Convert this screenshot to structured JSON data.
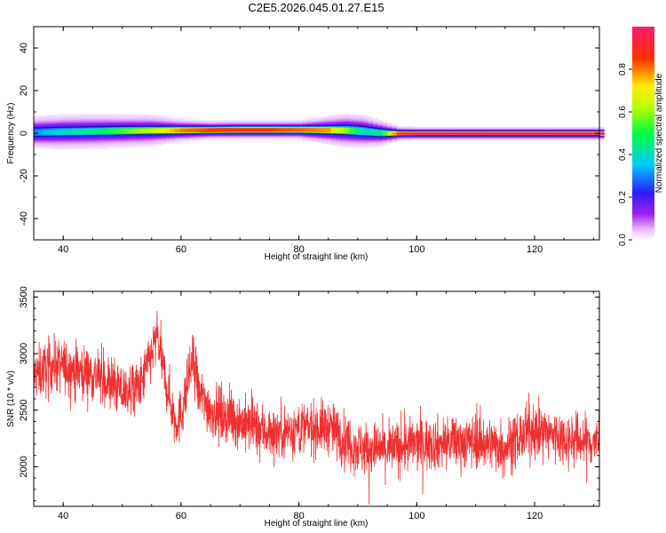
{
  "figure_title": "C2E5.2026.045.01.27.E15",
  "chart_data": [
    {
      "type": "heatmap",
      "xlabel": "Height of straight line (km)",
      "ylabel": "Frequency (Hz)",
      "xlim": [
        35,
        131
      ],
      "ylim": [
        -50,
        50
      ],
      "xticks": [
        40,
        60,
        80,
        100,
        120
      ],
      "yticks": [
        -40,
        -20,
        0,
        20,
        40
      ],
      "colorbar": {
        "label": "Normalized spectral amplitude",
        "range": [
          0,
          1
        ],
        "ticks": [
          0.0,
          0.2,
          0.4,
          0.6,
          0.8
        ]
      },
      "ridge": {
        "height_km": [
          35,
          40,
          45,
          50,
          55,
          60,
          65,
          70,
          75,
          80,
          85,
          88,
          91,
          94,
          97,
          100,
          105,
          110,
          115,
          120,
          125,
          131
        ],
        "center_hz": [
          0.5,
          0.8,
          1.0,
          1.2,
          1.4,
          1.5,
          1.6,
          1.7,
          1.7,
          1.7,
          1.6,
          1.5,
          1.0,
          0.2,
          0.0,
          0.0,
          0.0,
          0.0,
          0.0,
          0.0,
          0.0,
          0.0
        ],
        "halfwidth_hz": [
          2.0,
          2.0,
          2.0,
          2.0,
          1.9,
          1.8,
          1.7,
          1.7,
          1.7,
          1.7,
          1.9,
          2.2,
          2.2,
          1.8,
          1.2,
          1.1,
          1.1,
          1.1,
          1.1,
          1.1,
          1.1,
          1.1
        ],
        "peak_amplitude": [
          0.3,
          0.4,
          0.45,
          0.55,
          0.65,
          0.8,
          0.85,
          0.85,
          0.85,
          0.82,
          0.78,
          0.6,
          0.4,
          0.45,
          0.9,
          0.97,
          0.97,
          0.97,
          0.97,
          0.97,
          0.97,
          0.97
        ],
        "spread_hz": [
          4.0,
          4.5,
          4.5,
          4.2,
          4.0,
          2.6,
          2.0,
          2.0,
          2.0,
          2.0,
          3.5,
          4.2,
          4.0,
          3.0,
          1.6,
          1.5,
          1.5,
          1.5,
          1.5,
          1.5,
          1.5,
          1.5
        ]
      }
    },
    {
      "type": "line",
      "xlabel": "Height of straight line (km)",
      "ylabel": "SNR (10 * v/v)",
      "xlim": [
        35,
        131
      ],
      "ylim": [
        1650,
        3550
      ],
      "xticks": [
        40,
        60,
        80,
        100,
        120
      ],
      "yticks": [
        2000,
        2500,
        3000,
        3500
      ],
      "color": "#f03030",
      "trend": {
        "height_km": [
          35,
          38,
          42,
          46,
          50,
          53,
          56,
          57,
          59,
          60,
          62,
          63,
          65,
          70,
          75,
          80,
          85,
          90,
          95,
          100,
          105,
          110,
          115,
          120,
          125,
          131
        ],
        "snr": [
          2800,
          2900,
          2870,
          2800,
          2660,
          2700,
          3150,
          2850,
          2400,
          2450,
          2950,
          2650,
          2500,
          2400,
          2300,
          2330,
          2350,
          2170,
          2150,
          2200,
          2210,
          2230,
          2180,
          2330,
          2250,
          2210
        ]
      },
      "noise_amplitude": 170,
      "sample_count": 2400
    }
  ]
}
